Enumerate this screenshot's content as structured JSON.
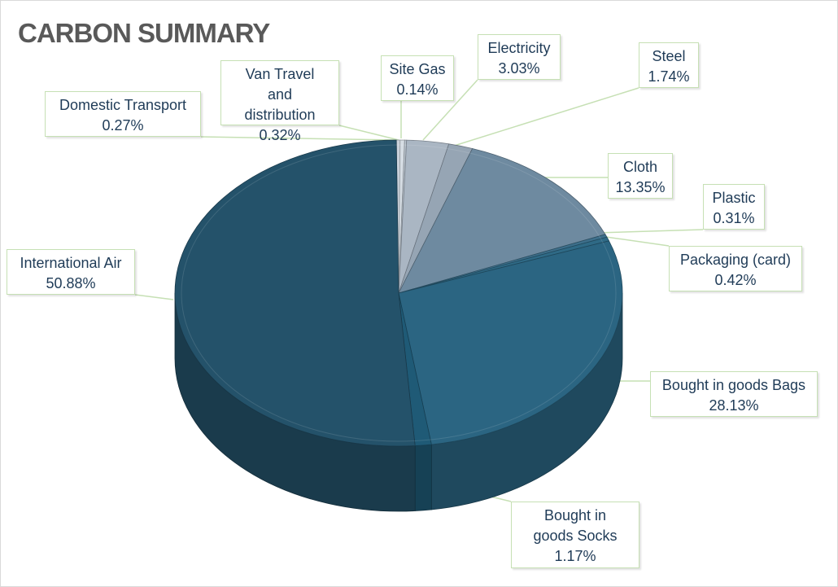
{
  "chart_data": {
    "type": "pie",
    "title": "CARBON SUMMARY",
    "slices": [
      {
        "name": "International Air",
        "value": 50.88,
        "label": "50.88%",
        "color": "#24526a"
      },
      {
        "name": "Domestic Transport",
        "value": 0.27,
        "label": "0.27%",
        "color": "#c9d1da"
      },
      {
        "name": "Van Travel and distribution",
        "value": 0.32,
        "label": "0.32%",
        "color": "#d6dde4"
      },
      {
        "name": "Site Gas",
        "value": 0.14,
        "label": "0.14%",
        "color": "#bcc6d0"
      },
      {
        "name": "Electricity",
        "value": 3.03,
        "label": "3.03%",
        "color": "#aab6c3"
      },
      {
        "name": "Steel",
        "value": 1.74,
        "label": "1.74%",
        "color": "#96a5b4"
      },
      {
        "name": "Cloth",
        "value": 13.35,
        "label": "13.35%",
        "color": "#6e8aa0"
      },
      {
        "name": "Plastic",
        "value": 0.31,
        "label": "0.31%",
        "color": "#3d6f8b"
      },
      {
        "name": "Packaging (card)",
        "value": 0.42,
        "label": "0.42%",
        "color": "#2f6a86"
      },
      {
        "name": "Bought in goods Bags",
        "value": 28.13,
        "label": "28.13%",
        "color": "#2b6582"
      },
      {
        "name": "Bought in goods Socks",
        "value": 1.17,
        "label": "1.17%",
        "color": "#1f5a76"
      }
    ],
    "legend": "none"
  },
  "colors": {
    "label_border": "#c6e0b4",
    "label_text": "#1f3b57",
    "title_text": "#595959"
  }
}
